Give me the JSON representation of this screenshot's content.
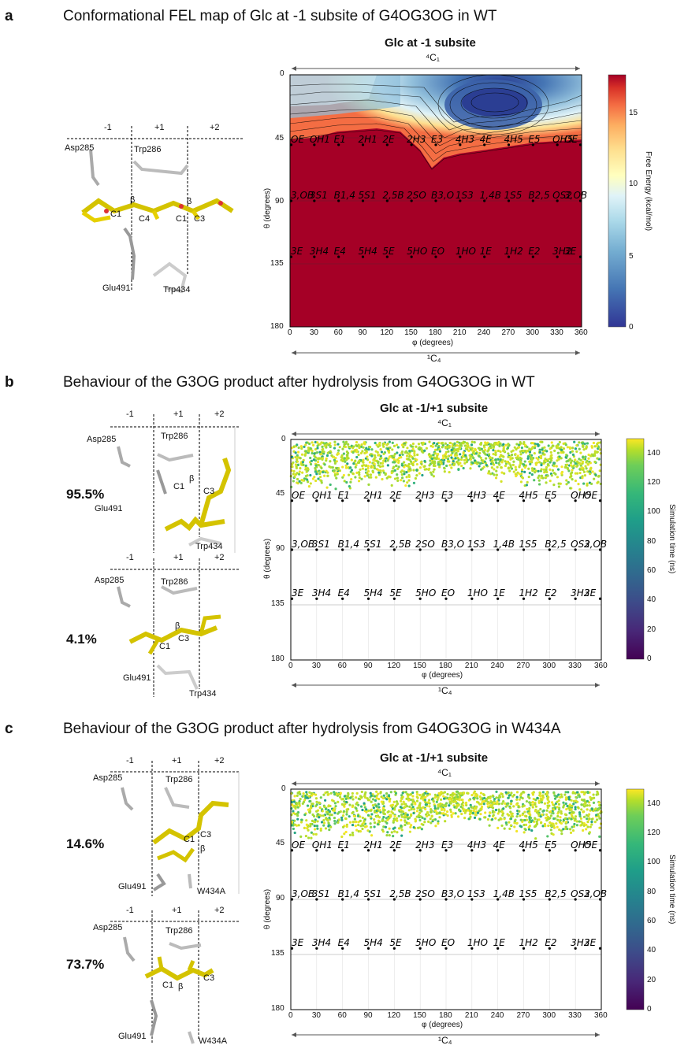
{
  "panels": [
    {
      "letter": "a",
      "title": "Conformational FEL map of Glc  at -1 subsite of G4OG3OG in WT",
      "chart_title": "Glc at -1 subsite",
      "top_label": "4C1",
      "bottom_label": "1C4",
      "x_label": "φ (degrees)",
      "y_label": "θ (degrees)",
      "colorbar_label": "Free Energy (kcal/mol)",
      "colorbar_ticks": [
        "15",
        "10",
        "5",
        "0"
      ],
      "structures": [
        {
          "subsites": [
            "-1",
            "+1",
            "+2"
          ],
          "residues": [
            "Asp285",
            "Trp286",
            "Glu491",
            "Trp434"
          ],
          "atoms": [
            "C1",
            "β",
            "C4",
            "C1",
            "β",
            "C3"
          ],
          "percent": ""
        }
      ]
    },
    {
      "letter": "b",
      "title": "Behaviour of the G3OG product after hydrolysis from G4OG3OG in WT",
      "chart_title": "Glc at -1/+1 subsite",
      "top_label": "4C1",
      "bottom_label": "1C4",
      "x_label": "φ (degrees)",
      "y_label": "θ (degrees)",
      "colorbar_label": "Simulation time (ns)",
      "colorbar_ticks": [
        "140",
        "120",
        "100",
        "80",
        "60",
        "40",
        "20",
        "0"
      ],
      "structures": [
        {
          "subsites": [
            "-1",
            "+1",
            "+2"
          ],
          "residues": [
            "Asp285",
            "Trp286",
            "Glu491",
            "Trp434"
          ],
          "atoms": [
            "C1",
            "β",
            "C3"
          ],
          "percent": "95.5%"
        },
        {
          "subsites": [
            "-1",
            "+1",
            "+2"
          ],
          "residues": [
            "Asp285",
            "Trp286",
            "Glu491",
            "Trp434"
          ],
          "atoms": [
            "C1",
            "β",
            "C3"
          ],
          "percent": "4.1%"
        }
      ]
    },
    {
      "letter": "c",
      "title": "Behaviour of the G3OG product after hydrolysis from G4OG3OG in W434A",
      "chart_title": "Glc at -1/+1 subsite",
      "top_label": "4C1",
      "bottom_label": "1C4",
      "x_label": "φ (degrees)",
      "y_label": "θ (degrees)",
      "colorbar_label": "Simulation time (ns)",
      "colorbar_ticks": [
        "140",
        "120",
        "100",
        "80",
        "60",
        "40",
        "20",
        "0"
      ],
      "structures": [
        {
          "subsites": [
            "-1",
            "+1",
            "+2"
          ],
          "residues": [
            "Asp285",
            "Trp286",
            "Glu491",
            "W434A"
          ],
          "atoms": [
            "C1",
            "β",
            "C3"
          ],
          "percent": "14.6%"
        },
        {
          "subsites": [
            "-1",
            "+1",
            "+2"
          ],
          "residues": [
            "Asp285",
            "Trp286",
            "Glu491",
            "W434A"
          ],
          "atoms": [
            "C1",
            "β",
            "C3"
          ],
          "percent": "73.7%"
        }
      ]
    }
  ],
  "chart_data": [
    {
      "type": "heatmap",
      "title": "Glc at -1 subsite",
      "xlabel": "φ (degrees)",
      "ylabel": "θ (degrees)",
      "xlim": [
        0,
        360
      ],
      "ylim": [
        180,
        0
      ],
      "x_ticks": [
        0,
        30,
        60,
        90,
        120,
        150,
        180,
        210,
        240,
        270,
        300,
        330,
        360
      ],
      "y_ticks": [
        0,
        45,
        90,
        135,
        180
      ],
      "colorbar": {
        "label": "Free Energy (kcal/mol)",
        "range": [
          0,
          17.5
        ],
        "ticks": [
          0,
          5,
          10,
          15
        ],
        "colormap": "RdYlBu_r"
      },
      "minimum": {
        "phi": 240,
        "theta": 20,
        "value": 0
      },
      "conformer_labels": [
        {
          "phi": 0,
          "theta": 50,
          "label": "OE"
        },
        {
          "phi": 30,
          "theta": 50,
          "label": "OH1"
        },
        {
          "phi": 60,
          "theta": 50,
          "label": "E1"
        },
        {
          "phi": 90,
          "theta": 50,
          "label": "2H1"
        },
        {
          "phi": 120,
          "theta": 50,
          "label": "2E"
        },
        {
          "phi": 150,
          "theta": 50,
          "label": "2H3"
        },
        {
          "phi": 180,
          "theta": 50,
          "label": "E3"
        },
        {
          "phi": 210,
          "theta": 50,
          "label": "4H3"
        },
        {
          "phi": 240,
          "theta": 50,
          "label": "4E"
        },
        {
          "phi": 270,
          "theta": 50,
          "label": "4H5"
        },
        {
          "phi": 300,
          "theta": 50,
          "label": "E5"
        },
        {
          "phi": 330,
          "theta": 50,
          "label": "OH5"
        },
        {
          "phi": 360,
          "theta": 50,
          "label": "OE"
        },
        {
          "phi": 0,
          "theta": 90,
          "label": "3,OB"
        },
        {
          "phi": 30,
          "theta": 90,
          "label": "3S1"
        },
        {
          "phi": 60,
          "theta": 90,
          "label": "B1,4"
        },
        {
          "phi": 90,
          "theta": 90,
          "label": "5S1"
        },
        {
          "phi": 120,
          "theta": 90,
          "label": "2,5B"
        },
        {
          "phi": 150,
          "theta": 90,
          "label": "2SO"
        },
        {
          "phi": 180,
          "theta": 90,
          "label": "B3,O"
        },
        {
          "phi": 210,
          "theta": 90,
          "label": "1S3"
        },
        {
          "phi": 240,
          "theta": 90,
          "label": "1,4B"
        },
        {
          "phi": 270,
          "theta": 90,
          "label": "1S5"
        },
        {
          "phi": 300,
          "theta": 90,
          "label": "B2,5"
        },
        {
          "phi": 330,
          "theta": 90,
          "label": "OS2"
        },
        {
          "phi": 360,
          "theta": 90,
          "label": "3,OB"
        },
        {
          "phi": 0,
          "theta": 130,
          "label": "3E"
        },
        {
          "phi": 30,
          "theta": 130,
          "label": "3H4"
        },
        {
          "phi": 60,
          "theta": 130,
          "label": "E4"
        },
        {
          "phi": 90,
          "theta": 130,
          "label": "5H4"
        },
        {
          "phi": 120,
          "theta": 130,
          "label": "5E"
        },
        {
          "phi": 150,
          "theta": 130,
          "label": "5HO"
        },
        {
          "phi": 180,
          "theta": 130,
          "label": "EO"
        },
        {
          "phi": 210,
          "theta": 130,
          "label": "1HO"
        },
        {
          "phi": 240,
          "theta": 130,
          "label": "1E"
        },
        {
          "phi": 270,
          "theta": 130,
          "label": "1H2"
        },
        {
          "phi": 300,
          "theta": 130,
          "label": "E2"
        },
        {
          "phi": 330,
          "theta": 130,
          "label": "3H2"
        },
        {
          "phi": 360,
          "theta": 130,
          "label": "3E"
        }
      ]
    },
    {
      "type": "scatter",
      "title": "Glc at -1/+1 subsite",
      "xlabel": "φ (degrees)",
      "ylabel": "θ (degrees)",
      "xlim": [
        0,
        360
      ],
      "ylim": [
        180,
        0
      ],
      "x_ticks": [
        0,
        30,
        60,
        90,
        120,
        150,
        180,
        210,
        240,
        270,
        300,
        330,
        360
      ],
      "y_ticks": [
        0,
        45,
        90,
        135,
        180
      ],
      "colorbar": {
        "label": "Simulation time (ns)",
        "range": [
          0,
          150
        ],
        "ticks": [
          0,
          20,
          40,
          60,
          80,
          100,
          120,
          140
        ],
        "colormap": "viridis"
      },
      "theta_band": [
        0,
        40
      ],
      "phi_range": [
        0,
        360
      ]
    },
    {
      "type": "scatter",
      "title": "Glc at -1/+1 subsite",
      "xlabel": "φ (degrees)",
      "ylabel": "θ (degrees)",
      "xlim": [
        0,
        360
      ],
      "ylim": [
        180,
        0
      ],
      "x_ticks": [
        0,
        30,
        60,
        90,
        120,
        150,
        180,
        210,
        240,
        270,
        300,
        330,
        360
      ],
      "y_ticks": [
        0,
        45,
        90,
        135,
        180
      ],
      "colorbar": {
        "label": "Simulation time (ns)",
        "range": [
          0,
          150
        ],
        "ticks": [
          0,
          20,
          40,
          60,
          80,
          100,
          120,
          140
        ],
        "colormap": "viridis"
      },
      "theta_band": [
        0,
        40
      ],
      "phi_range": [
        0,
        360
      ]
    }
  ]
}
